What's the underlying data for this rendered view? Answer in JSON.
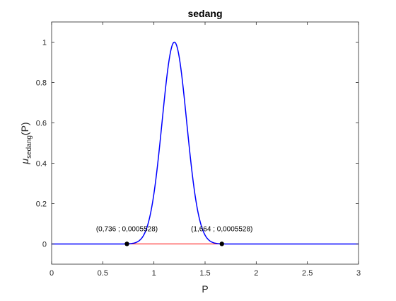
{
  "chart_data": {
    "type": "line",
    "title": "sedang",
    "xlabel": "P",
    "ylabel": {
      "mu": "μ",
      "subscript": "sedang",
      "arg": "(P)"
    },
    "xlim": [
      0,
      3
    ],
    "ylim": [
      -0.1,
      1.1
    ],
    "x_ticks": [
      0,
      0.5,
      1,
      1.5,
      2,
      2.5,
      3
    ],
    "x_tick_labels": [
      "0",
      "0.5",
      "1",
      "1.5",
      "2",
      "2.5",
      "3"
    ],
    "y_ticks": [
      0,
      0.2,
      0.4,
      0.6,
      0.8,
      1
    ],
    "y_tick_labels": [
      "0",
      "0.2",
      "0.4",
      "0.6",
      "0.8",
      "1"
    ],
    "grid": false,
    "membership_curve": {
      "shape": "gaussian",
      "center": 1.2,
      "sigma": 0.12,
      "x_range": [
        0,
        3
      ],
      "color": "#0000ff"
    },
    "threshold_line": {
      "x_range": [
        0.736,
        1.664
      ],
      "y": 0.0005528,
      "color": "#ff0000"
    },
    "points": [
      {
        "x": 0.736,
        "y": 0.0005528,
        "label": "(0,736 ; 0,0005528)"
      },
      {
        "x": 1.664,
        "y": 0.0005528,
        "label": "(1,664 ; 0,0005528)"
      }
    ],
    "point_color": "#000000",
    "axis_color": "#262626"
  }
}
